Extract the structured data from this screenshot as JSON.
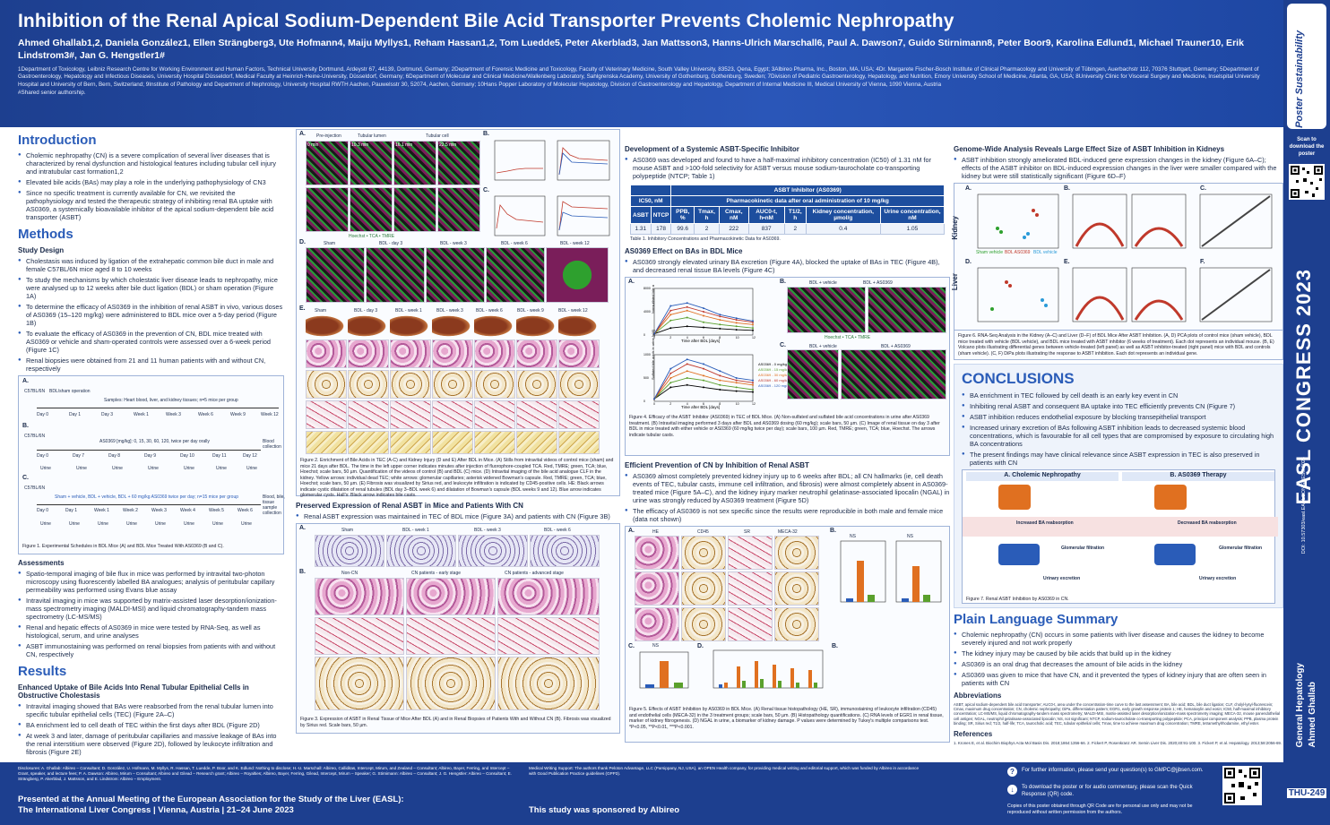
{
  "header": {
    "title": "Inhibition of the Renal Apical Sodium-Dependent Bile Acid Transporter Prevents Cholemic Nephropathy",
    "authors": "Ahmed Ghallab1,2, Daniela González1, Ellen Strängberg3, Ute Hofmann4, Maiju Myllys1, Reham Hassan1,2, Tom Luedde5, Peter Akerblad3, Jan Mattsson3, Hanns-Ulrich Marschall6, Paul A. Dawson7, Guido Stirnimann8, Peter Boor9, Karolina Edlund1, Michael Trauner10, Erik Lindstrom3#, Jan G. Hengstler1#",
    "affiliations": "1Department of Toxicology, Leibniz Research Centre for Working Environment and Human Factors, Technical University Dortmund, Ardeystr 67, 44139, Dortmund, Germany; 2Department of Forensic Medicine and Toxicology, Faculty of Veterinary Medicine, South Valley University, 83523, Qena, Egypt; 3Albireo Pharma, Inc., Boston, MA, USA; 4Dr. Margarete Fischer-Bosch Institute of Clinical Pharmacology and University of Tübingen, Auerbachstr 112, 70376 Stuttgart, Germany; 5Department of Gastroenterology, Hepatology and Infectious Diseases, University Hospital Düsseldorf, Medical Faculty at Heinrich-Heine-University, Düsseldorf, Germany; 6Department of Molecular and Clinical Medicine/Wallenberg Laboratory, Sahlgrenska Academy, University of Gothenburg, Gothenburg, Sweden; 7Division of Pediatric Gastroenterology, Hepatology, and Nutrition, Emory University School of Medicine, Atlanta, GA, USA; 8University Clinic for Visceral Surgery and Medicine, Inselspital University Hospital and University of Bern, Bern, Switzerland; 9Institute of Pathology and Department of Nephrology, University Hospital RWTH Aachen, Pauwelsstr 30, 52074, Aachen, Germany; 10Hans Popper Laboratory of Molecular Hepatology, Division of Gastroenterology and Hepatology, Department of Internal Medicine III, Medical University of Vienna, 1090 Vienna, Austria",
    "shared": "#Shared senior authorship."
  },
  "sidebar": {
    "logo": "Poster Sustainability",
    "scan": "Scan to download the poster",
    "congress": "EASL CONGRESS 2023",
    "congress_sub": "Vienna, Austria 21–24 June",
    "doi": "DOI: 10.57303/easl.EASLCONGRESS.2023",
    "topic1": "General Hepatology",
    "topic2": "Ahmed Ghallab",
    "code": "THU-249"
  },
  "intro": {
    "heading": "Introduction",
    "bullets": [
      "Cholemic nephropathy (CN) is a severe complication of several liver diseases that is characterized by renal dysfunction and histological features including tubular cell injury and intratubular cast formation1,2",
      "Elevated bile acids (BAs) may play a role in the underlying pathophysiology of CN3",
      "Since no specific treatment is currently available for CN, we revisited the pathophysiology and tested the therapeutic strategy of inhibiting renal BA uptake with AS0369, a systemically bioavailable inhibitor of the apical sodium-dependent bile acid transporter (ASBT)"
    ]
  },
  "methods": {
    "heading": "Methods",
    "study_design": "Study Design",
    "bullets": [
      "Cholestasis was induced by ligation of the extrahepatic common bile duct in male and female C57BL/6N mice aged 8 to 10 weeks",
      "To study the mechanisms by which cholestatic liver disease leads to nephropathy, mice were analysed up to 12 weeks after bile duct ligation (BDL) or sham operation (Figure 1A)",
      "To determine the efficacy of AS0369 in the inhibition of renal ASBT in vivo, various doses of AS0369 (15–120 mg/kg) were administered to BDL mice over a 5-day period (Figure 1B)",
      "To evaluate the efficacy of AS0369 in the prevention of CN, BDL mice treated with AS0369 or vehicle and sham-operated controls were assessed over a 6-week period (Figure 1C)",
      "Renal biopsies were obtained from 21 and 11 human patients with and without CN, respectively"
    ],
    "fig1_caption": "Figure 1. Experimental Schedules in BDL Mice (A) and BDL Mice Treated With AS0369 (B and C).",
    "fig1_a": "BDL/sham operation",
    "fig1_a_samples": "Samples: Heart blood, liver, and kidney tissues; n=5 mice per group",
    "fig1_a_times": [
      "Day 0",
      "Day 1",
      "Day 3",
      "Week 1",
      "Week 3",
      "Week 6",
      "Week 9",
      "Week 12"
    ],
    "fig1_b_label": "AS0369 [mg/kg]: 0, 15, 30, 60, 120, twice per day orally",
    "fig1_b_times": [
      "Day 0",
      "Day 7",
      "Day 8",
      "Day 9",
      "Day 10",
      "Day 11",
      "Day 12"
    ],
    "fig1_b_end": "Blood collection",
    "fig1_c_label": "Sham + vehicle, BDL + vehicle, BDL + 60 mg/kg AS0369 twice per day; n=15 mice per group",
    "fig1_c_times": [
      "Day 0",
      "Day 1",
      "Week 1",
      "Week 2",
      "Week 3",
      "Week 4",
      "Week 5",
      "Week 6"
    ],
    "fig1_c_end": "Blood, bile, tissue sample collection",
    "mouse": "C57BL/6N",
    "urine": "Urine",
    "assessments": "Assessments",
    "assess_bullets": [
      "Spatio-temporal imaging of bile flux in mice was performed by intravital two-photon microscopy using fluorescently labelled BA analogues; analysis of peritubular capillary permeability was performed using Evans blue assay",
      "Intravital imaging in mice was supported by matrix-assisted laser desorption/ionization-mass spectrometry imaging (MALDI-MSI) and liquid chromatography-tandem mass spectrometry (LC-MS/MS)",
      "Renal and hepatic effects of AS0369 in mice were tested by RNA-Seq, as well as histological, serum, and urine analyses",
      "ASBT immunostaining was performed on renal biopsies from patients with and without CN, respectively"
    ]
  },
  "results": {
    "heading": "Results",
    "sub1": "Enhanced Uptake of Bile Acids Into Renal Tubular Epithelial Cells in Obstructive Cholestasis",
    "bullets": [
      "Intravital imaging showed that BAs were reabsorbed from the renal tubular lumen into specific tubular epithelial cells (TEC) (Figure 2A–C)",
      "BA enrichment led to cell death of TEC within the first days after BDL (Figure 2D)",
      "At week 3 and later, damage of peritubular capillaries and massive leakage of BAs into the renal interstitium were observed (Figure 2D), followed by leukocyte infiltration and fibrosis (Figure 2E)"
    ]
  },
  "fig2": {
    "a_labels": [
      "Pre-injection",
      "Tubular lumen",
      "Tubular cell"
    ],
    "times": [
      "0 min",
      "10.3 min",
      "16.1 min",
      "22.5 min"
    ],
    "legend": "Hoechst • TCA • TMRE",
    "d_labels": [
      "Sham",
      "BDL - day 3",
      "BDL - week 3",
      "BDL - week 6",
      "BDL - week 12"
    ],
    "e_labels": [
      "Sham",
      "BDL - day 3",
      "BDL - week 1",
      "BDL - week 3",
      "BDL - week 6",
      "BDL - week 9",
      "BDL - week 12"
    ],
    "e_rows": [
      "Gross",
      "H&E",
      "CD45",
      "SR",
      "PAS"
    ],
    "caption": "Figure 2. Enrichment of Bile Acids in TEC (A-C) and Kidney Injury (D and E) After BDL in Mice. (A) Stills from intravital videos of control mice (sham) and mice 21 days after BDL. The time in the left upper corner indicates minutes after injection of fluorophore-coupled TCA. Red, TMRE; green, TCA; blue, Hoechst; scale bars, 50 µm. Quantification of the videos of control (B) and BDL (C) mice. (D) Intravital imaging of the bile acid analogue CLF in the kidney. Yellow arrows: individual dead TEC; white arrows: glomerular capillaries; asterisk widened Bowman's capsule. Red, TMRE; green, TCA; blue, Hoechst; scale bars, 50 µm. (E) Fibrosis was visualized by Sirius red, and leukocyte infiltration is indicated by CD45-positive cells. HE: Black arrows indicate cystic dilatation of renal tubules (BDL day 3–BDL week 6) and dilatation of Bowman's capsule (BDL weeks 9 and 12). Blue arrow indicates glomerular cysts. Hall's: Black arrow indicates bile casts."
  },
  "fig3": {
    "heading": "Preserved Expression of Renal ASBT in Mice and Patients With CN",
    "bullet": "Renal ASBT expression was maintained in TEC of BDL mice (Figure 3A) and patients with CN (Figure 3B)",
    "a_labels": [
      "Sham",
      "BDL - week 1",
      "BDL - week 3",
      "BDL - week 6"
    ],
    "b_labels": [
      "Non-CN",
      "CN patients - early stage",
      "CN patients - advanced stage"
    ],
    "rows": [
      "ASBT",
      "HE",
      "SR",
      "ASBT"
    ],
    "caption": "Figure 3. Expression of ASBT in Renal Tissue of Mice After BDL (A) and in Renal Biopsies of Patients With and Without CN (B). Fibrosis was visualized by Sirius red. Scale bars, 50 µm."
  },
  "col3": {
    "dev_heading": "Development of a Systemic ASBT-Specific Inhibitor",
    "dev_bullet": "AS0369 was developed and found to have a half-maximal inhibitory concentration (IC50) of 1.31 nM for mouse ASBT and >100-fold selectivity for ASBT versus mouse sodium-taurocholate co-transporting polypeptide (NTCP; Table 1)",
    "table_title": "ASBT Inhibitor (AS0369)",
    "table_ic50": "IC50, nM",
    "table_pk": "Pharmacokinetic data after oral administration of 10 mg/kg",
    "table_headers": [
      "ASBT",
      "NTCP",
      "PPB, %",
      "Tmax, h",
      "Cmax, nM",
      "AUC0-t, h•nM",
      "T1/2, h",
      "Kidney concentration, µmol/g",
      "Urine concentration, nM"
    ],
    "table_values": [
      "1.31",
      "178",
      "99.6",
      "2",
      "222",
      "837",
      "2",
      "0.4",
      "1.05"
    ],
    "table_caption": "Table 1. Inhibitory Concentrations and Pharmacokinetic Data for AS0369.",
    "effect_heading": "AS0369 Effect on BAs in BDL Mice",
    "effect_bullet": "AS0369 strongly elevated urinary BA excretion (Figure 4A), blocked the uptake of BAs in TEC (Figure 4B), and decreased renal tissue BA levels (Figure 4C)",
    "fig4_b_labels": [
      "BDL + vehicle",
      "BDL + AS0369"
    ],
    "fig4_legend": "Hoechst • TCA • TMRE",
    "fig4_caption": "Figure 4. Efficacy of the ASBT Inhibitor (AS0369) in TEC of BDL Mice. (A) Non-sulfated and sulfated bile acid concentrations in urine after AS0369 treatment. (B) Intravital imaging performed 3 days after BDL and AS0369 dosing (60 mg/kg); scale bars, 50 µm. (C) Image of renal tissue on day 3 after BDL in mice treated with either vehicle or AS0369 (60 mg/kg twice per day); scale bars, 100 µm. Red, TMRE; green, TCA; blue, Hoechst. The arrows indicate tubular casts.",
    "cn_heading": "Efficient Prevention of CN by Inhibition of Renal ASBT",
    "cn_bullets": [
      "AS0369 almost completely prevented kidney injury up to 6 weeks after BDL; all CN hallmarks (ie, cell death events of TEC, tubular casts, immune cell infiltration, and fibrosis) were almost completely absent in AS0369-treated mice (Figure 5A–C), and the kidney injury marker neutrophil gelatinase-associated lipocalin (NGAL) in urine was strongly reduced by AS0369 treatment (Figure 5D)",
      "The efficacy of AS0369 is not sex specific since the results were reproducible in both male and female mice (data not shown)"
    ],
    "fig5_cols": [
      "HE",
      "CD45",
      "SR",
      "MECA-32"
    ],
    "fig5_rows": [
      "Sham",
      "BDL + vehicle",
      "BDL + AS0369"
    ],
    "fig5_caption": "Figure 5. Effects of ASBT Inhibition by AS0369 in BDL Mice. (A) Renal tissue histopathology (HE, SR), immunostaining of leukocyte infiltration (CD45) and endothelial cells (MECA-32) in the 3 treatment groups; scale bars, 50 µm. (B) Histopathology quantifications. (C) RNA levels of EGR1 in renal tissue, marker of kidney fibrogenesis. (D) NGAL in urine, a biomarker of kidney damage. P values were determined by Tukey's multiple comparisons test. *P<0.05, **P<0.01, ***P<0.001.",
    "ns": "NS"
  },
  "chart_data": [
    {
      "type": "line",
      "title": "",
      "ylabel": "Nonsulfated bile acids in urine [µM]",
      "xlabel": "Time after BDL [days]",
      "x": [
        0,
        2,
        4,
        6,
        8,
        10,
        12
      ],
      "ylim": [
        0,
        8000
      ],
      "series": [
        {
          "name": "AS0369 - 0 mg/kg",
          "values": [
            200,
            1200,
            1500,
            1300,
            1100,
            900,
            800
          ]
        },
        {
          "name": "AS0369 - 15 mg/kg",
          "values": [
            200,
            2500,
            3000,
            2200,
            1800,
            1500,
            1200
          ]
        },
        {
          "name": "AS0369 - 30 mg/kg",
          "values": [
            200,
            3500,
            4200,
            3300,
            2600,
            2100,
            1800
          ]
        },
        {
          "name": "AS0369 - 60 mg/kg",
          "values": [
            200,
            4200,
            4800,
            4000,
            3200,
            2600,
            2200
          ]
        },
        {
          "name": "AS0369 - 120 mg/kg",
          "values": [
            200,
            5000,
            5500,
            4600,
            3500,
            2900,
            2400
          ]
        }
      ]
    },
    {
      "type": "line",
      "title": "",
      "ylabel": "Sulfated bile acids in urine [µM]",
      "xlabel": "Time after BDL [days]",
      "x": [
        0,
        2,
        4,
        6,
        8,
        10,
        12
      ],
      "ylim": [
        0,
        1000
      ],
      "series": [
        {
          "name": "AS0369 - 0 mg/kg",
          "values": [
            50,
            300,
            350,
            300,
            250,
            220,
            200
          ]
        },
        {
          "name": "AS0369 - 15 mg/kg",
          "values": [
            50,
            400,
            500,
            450,
            350,
            300,
            250
          ]
        },
        {
          "name": "AS0369 - 30 mg/kg",
          "values": [
            50,
            500,
            650,
            550,
            450,
            400,
            350
          ]
        },
        {
          "name": "AS0369 - 60 mg/kg",
          "values": [
            50,
            600,
            800,
            700,
            550,
            450,
            400
          ]
        },
        {
          "name": "AS0369 - 120 mg/kg",
          "values": [
            50,
            700,
            900,
            800,
            650,
            500,
            450
          ]
        }
      ]
    }
  ],
  "col4": {
    "gw_heading": "Genome-Wide Analysis Reveals Large Effect Size of ASBT Inhibition in Kidneys",
    "gw_bullet": "ASBT inhibition strongly ameliorated BDL-induced gene expression changes in the kidney (Figure 6A–C); effects of the ASBT inhibitor on BDL-induced expression changes in the liver were smaller compared with the kidney but were still statistically significant (Figure 6D–F)",
    "kidney": "Kidney",
    "liver": "Liver",
    "fig6_legend": [
      "Sham vehicle",
      "BDL AS0369",
      "BDL vehicle"
    ],
    "fig6_caption": "Figure 6. RNA-Seq Analysis in the Kidney (A–C) and Liver (D–F) of BDL Mice After ASBT Inhibition. (A, D) PCA plots of control mice (sham vehicle), BDL mice treated with vehicle (BDL vehicle), and BDL mice treated with ASBT inhibitor (6 weeks of treatment). Each dot represents an individual mouse. (B, E) Volcano plots illustrating differential genes between vehicle-treated (left panel) as well as ASBT inhibitor-treated (right panel) mice with BDL and controls (sham vehicle). (C, F) DiPa plots illustrating the response to ASBT inhibition. Each dot represents an individual gene.",
    "conc_heading": "CONCLUSIONS",
    "conc_bullets": [
      "BA enrichment in TEC followed by cell death is an early key event in CN",
      "Inhibiting renal ASBT and consequent BA uptake into TEC efficiently prevents CN (Figure 7)",
      "ASBT inhibition reduces endothelial exposure by blocking transepithelial transport",
      "Increased urinary excretion of BAs following ASBT inhibition leads to decreased systemic blood concentrations, which is favourable for all cell types that are compromised by exposure to circulating high BA concentrations",
      "The present findings may have clinical relevance since ASBT expression in TEC is also preserved in patients with CN"
    ],
    "fig7_a": "A. Cholemic Nephropathy",
    "fig7_b": "B. AS0369 Therapy",
    "fig7_inc": "Increased BA reabsorption",
    "fig7_dec": "Decreased BA reabsorption",
    "fig7_glom": "Glomerular filtration",
    "fig7_urine": "Urinary excretion",
    "fig7_caption": "Figure 7. Renal ASBT Inhibition by AS0369 in CN.",
    "plain_heading": "Plain Language Summary",
    "plain_bullets": [
      "Cholemic nephropathy (CN) occurs in some patients with liver disease and causes the kidney to become severely injured and not work properly",
      "The kidney injury may be caused by bile acids that build up in the kidney",
      "AS0369 is an oral drug that decreases the amount of bile acids in the kidney",
      "AS0369 was given to mice that have CN, and it prevented the types of kidney injury that are often seen in patients with CN"
    ],
    "abbrev_heading": "Abbreviations",
    "abbrev_text": "ASBT, apical sodium-dependent bile acid transporter; AUC0-t, area under the concentration-time curve to the last assessment; BA, bile acid; BDL, bile duct ligation; CLF, cholyl-lysyl-fluorescein; Cmax, maximum drug concentration; CN, cholemic nephropathy; DiPa, differentiation pattern; EGR1, early growth response protein 1; HE, hematoxylin and eosin; IC50, half-maximal inhibitory concentration; LC-MS/MS, liquid chromatography-tandem mass spectrometry; MALDI-MSI, matrix-assisted laser desorption/ionization-mass spectrometry imaging; MECA-32, mouse panendothelial cell antigen; NGAL, neutrophil gelatinase-associated lipocalin; NS, not significant; NTCP, sodium-taurocholate co-transporting polypeptide; PCA, principal component analysis; PPB, plasma protein binding; SR, Sirius red; T1/2, half-life; TCA, taurocholic acid; TEC, tubular epithelial cells; Tmax, time to achieve maximum drug concentration; TMRE, tetramethylrhodamine, ethyl ester.",
    "ref_heading": "References",
    "ref_text": "1. Krones E, et al. Biochim Biophys Acta Mol Basis Dis. 2018;1864:1356-66. 2. Fickert P, Rosenkranz AR. Semin Liver Dis. 2020;40:91-100. 3. Fickert P, et al. Hepatology. 2013;58:2056-69."
  },
  "footer": {
    "disclosures": "Disclosures: A. Ghallab: Albireo – Consultant; D. González, U. Hofmann, M. Myllys, R. Hassan, T. Luedde, P. Boor, and K. Edlund: Nothing to disclose; H.-U. Marschall: Albireo, Calliditas, Intercept, Mirum, and Zealand – Consultant; Albireo, Bayer, Ferring, and Intercept – Grant, speaker, and lecture fees; P. A. Dawson: Albireo, Mirum – Consultant; Albireo and Gilead – Research grant; Albireo – Royalties; Albireo, Bayer, Ferring, Gilead, Intercept, Mirum – Speaker; G. Stirnimann: Albireo – Consultant; J. G. Hengstler: Albireo – Consultant; E. Strängberg, P. Akerblad, J. Mattsson, and E. Lindstrom: Albireo – Employment.",
    "writing": "Medical Writing Support: The authors thank Peloton Advantage, LLC (Parsippany, NJ, USA), an OPEN Health company, for providing medical writing and editorial support, which was funded by Albireo in accordance with Good Publication Practice guidelines (GPP3).",
    "presented": "Presented at the Annual Meeting of the European Association for the Study of the Liver (EASL):",
    "presented2": "The International Liver Congress | Vienna, Austria | 21–24 June 2023",
    "sponsored": "This study was sponsored by Albireo",
    "info1": "For further information, please send your question(s) to GMPC@jjbsen.com.",
    "info2": "To download the poster or for audio commentary, please scan the Quick Response (QR) code.",
    "info3": "Copies of this poster obtained through QR Code are for personal use only and may not be reproduced without written permission from the authors."
  }
}
